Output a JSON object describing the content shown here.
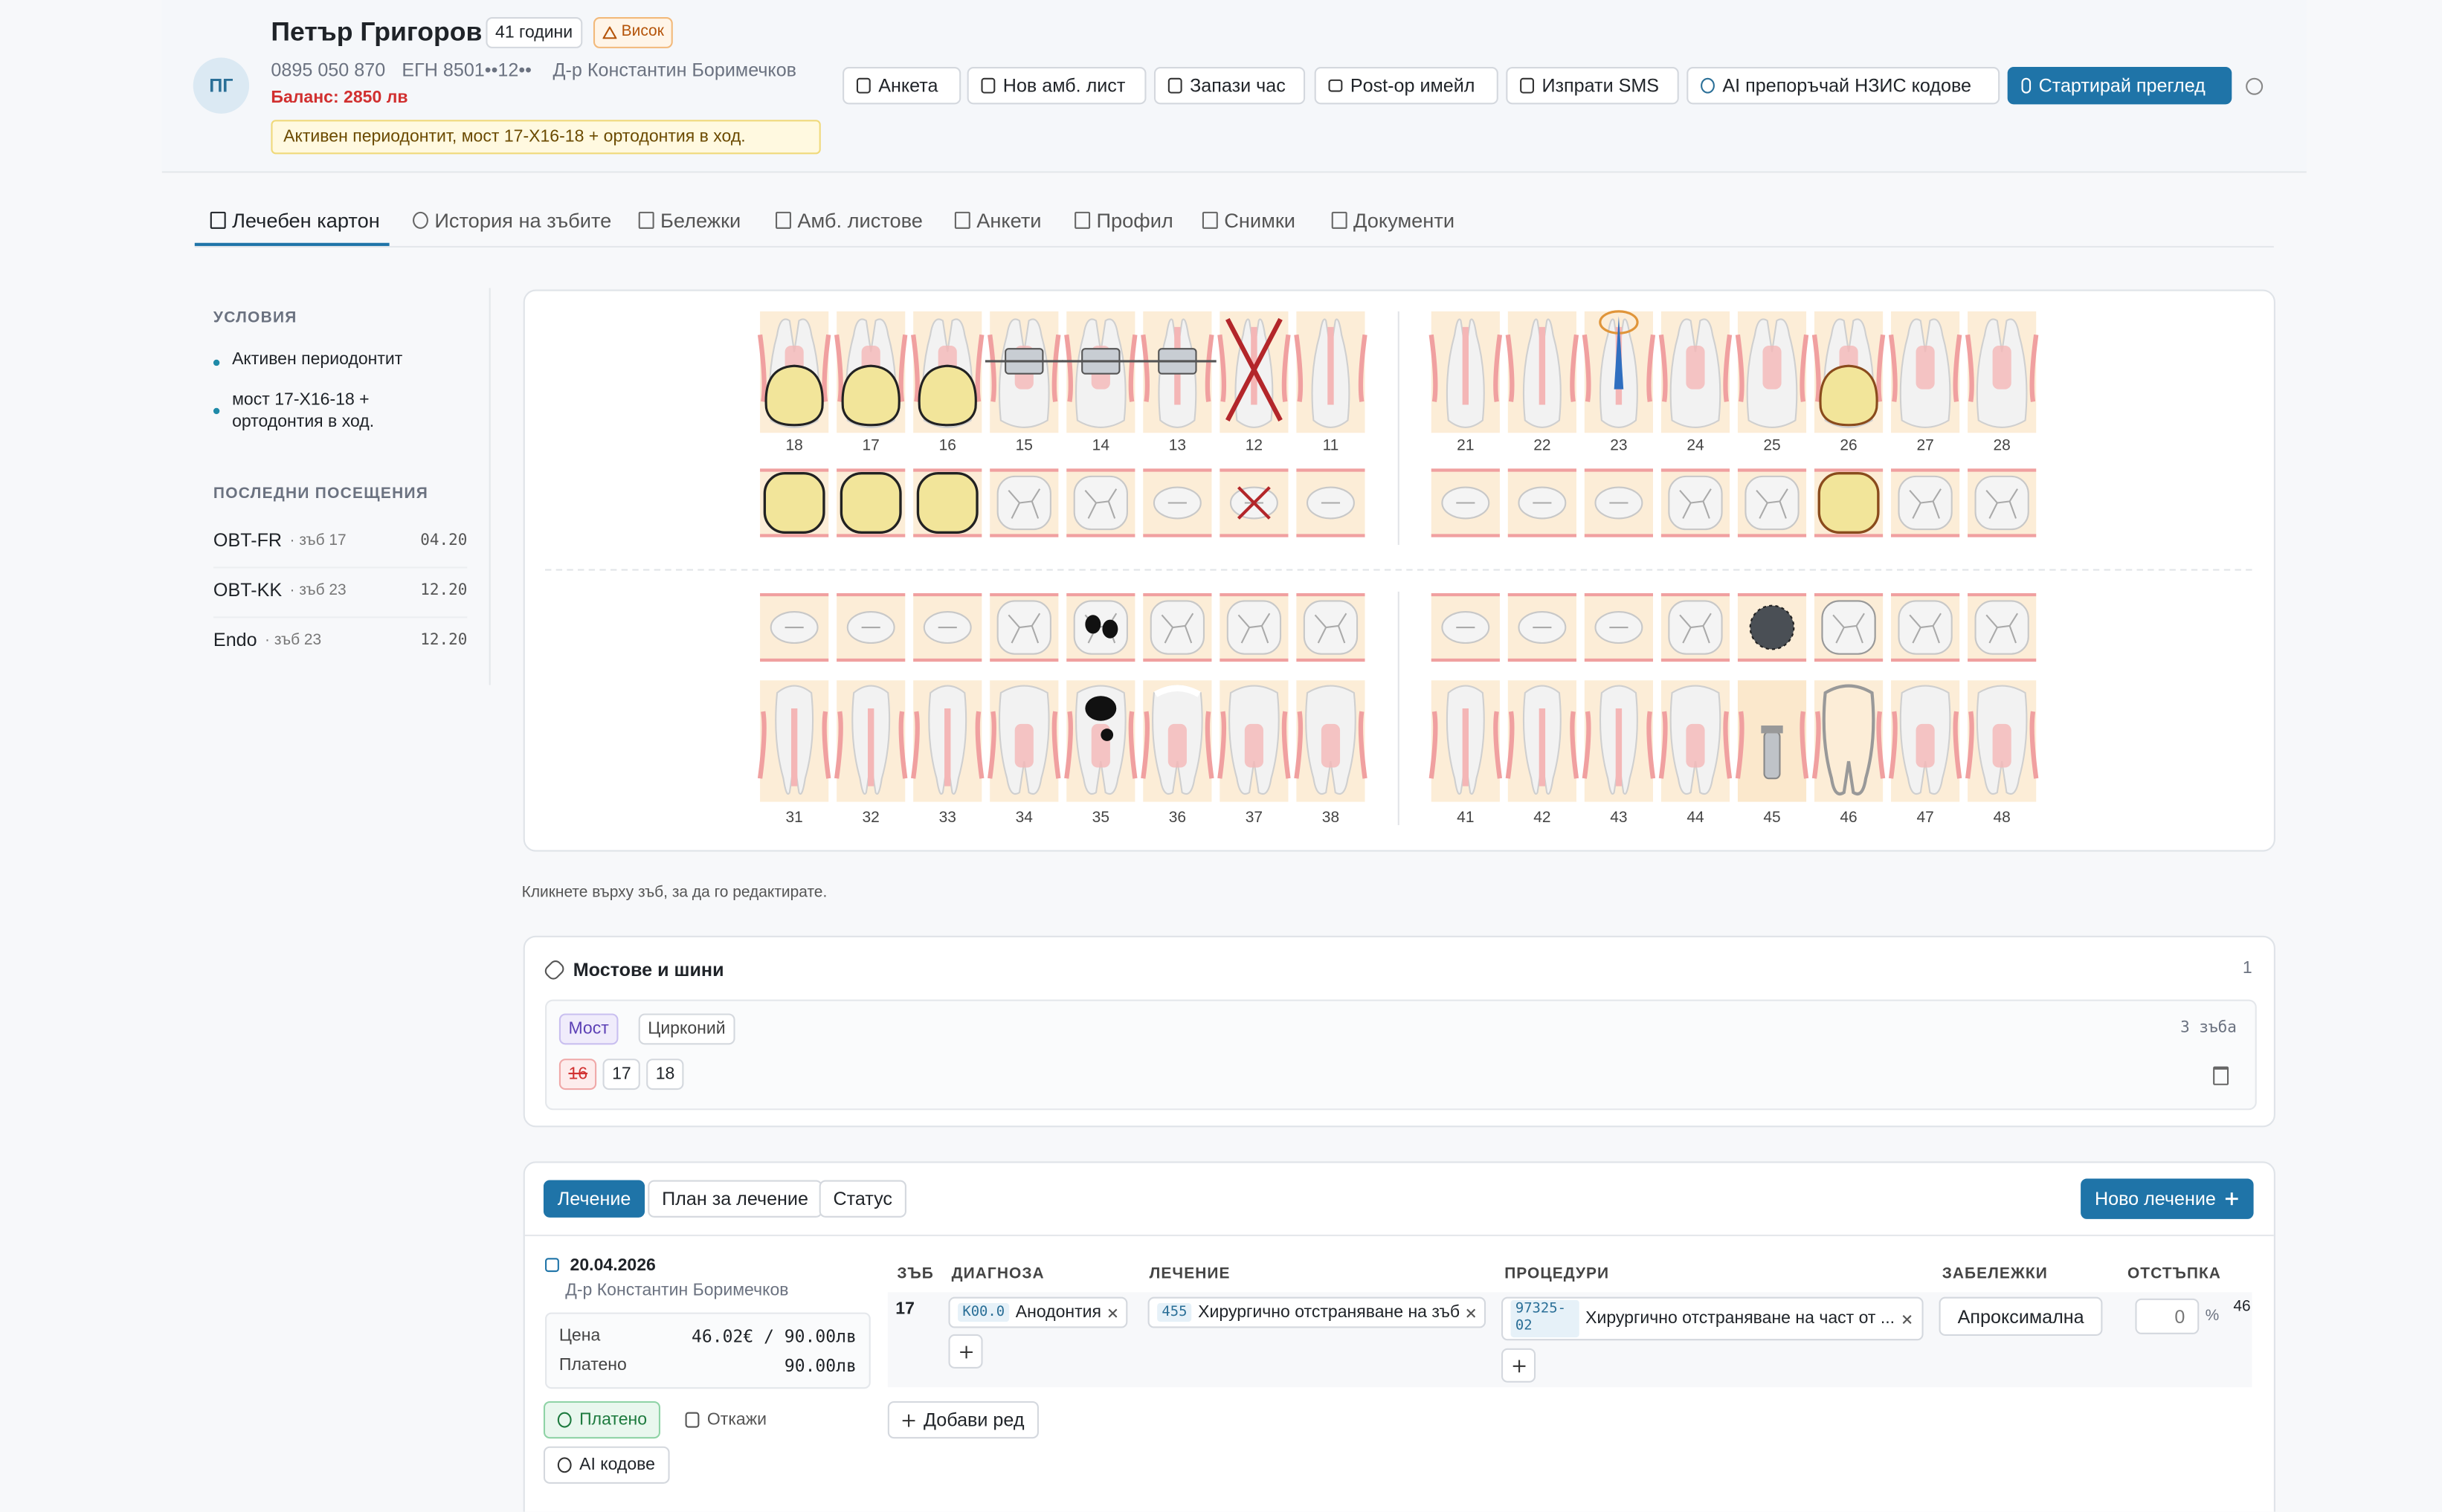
{
  "header": {
    "initials": "ПГ",
    "name": "Петър Григоров",
    "age": "41 години",
    "risk": "Висок",
    "phone": "0895 050 870",
    "egn": "ЕГН 8501••12••",
    "doctor": "Д-р Константин Боримечков",
    "balance": "Баланс: 2850 лв",
    "alert": "Активен периодонтит, мост 17-X16-18 + ортодонтия в ход."
  },
  "actions": [
    "Анкета",
    "Нов амб. лист",
    "Запази час",
    "Post-op имейл",
    "Изпрати SMS",
    "AI препоръчай НЗИС кодове",
    "Стартирай преглед"
  ],
  "tabs": [
    "Лечебен картон",
    "История на зъбите",
    "Бележки",
    "Амб. листове",
    "Анкети",
    "Профил",
    "Снимки",
    "Документи"
  ],
  "sidebar": {
    "conditions_title": "УСЛОВИЯ",
    "conditions": [
      "Активен периодонтит",
      "мост 17-X16-18 + ортодонтия в ход."
    ],
    "visits_title": "ПОСЛЕДНИ ПОСЕЩЕНИЯ",
    "visits": [
      {
        "code": "OBT-FR",
        "tooth": "· зъб 17",
        "date": "04.20"
      },
      {
        "code": "OBT-KK",
        "tooth": "· зъб 23",
        "date": "12.20"
      },
      {
        "code": "Endo",
        "tooth": "· зъб 23",
        "date": "12.20"
      }
    ]
  },
  "tooth_chart": {
    "upper": [
      [
        18,
        17,
        16,
        15,
        14,
        13,
        12,
        11
      ],
      [
        21,
        22,
        23,
        24,
        25,
        26,
        27,
        28
      ]
    ],
    "lower": [
      [
        31,
        32,
        33,
        34,
        35,
        36,
        37,
        38
      ],
      [
        41,
        42,
        43,
        44,
        45,
        46,
        47,
        48
      ]
    ],
    "hint": "Кликнете върху зъб, за да го редактирате."
  },
  "bridges": {
    "title": "Мостове и шини",
    "count": 1,
    "type": "Мост",
    "material": "Цирконий",
    "teeth_count": "3 зъба",
    "teeth": [
      16,
      17,
      18
    ]
  },
  "treatments": {
    "tabs": [
      "Лечение",
      "План за лечение",
      "Статус"
    ],
    "new_button": "Ново лечение",
    "entry": {
      "date": "20.04.2026",
      "doctor": "Д-р Константин Боримечков",
      "price_label": "Цена",
      "price": "46.02€ / 90.00лв",
      "paid_label": "Платено",
      "paid": "90.00лв",
      "status": "Платено",
      "cancel": "Откажи",
      "ai": "AI кодове"
    },
    "columns": [
      "ЗЪБ",
      "ДИАГНОЗА",
      "ЛЕЧЕНИЕ",
      "ПРОЦЕДУРИ",
      "ЗАБЕЛЕЖКИ",
      "ОТСТЪПКА"
    ],
    "row": {
      "tooth": 17,
      "diagnosis_code": "K00.0",
      "diagnosis": "Анодонтия",
      "treatment_code": "455",
      "treatment": "Хирургично отстраняване на зъб",
      "procedure_code": "97325-02",
      "procedure": "Хирургично отстраняване на част от ...",
      "remark": "Апроксимална",
      "discount": 0,
      "discount_unit": "%",
      "extra": 46
    },
    "add_row": "Добави ред"
  }
}
